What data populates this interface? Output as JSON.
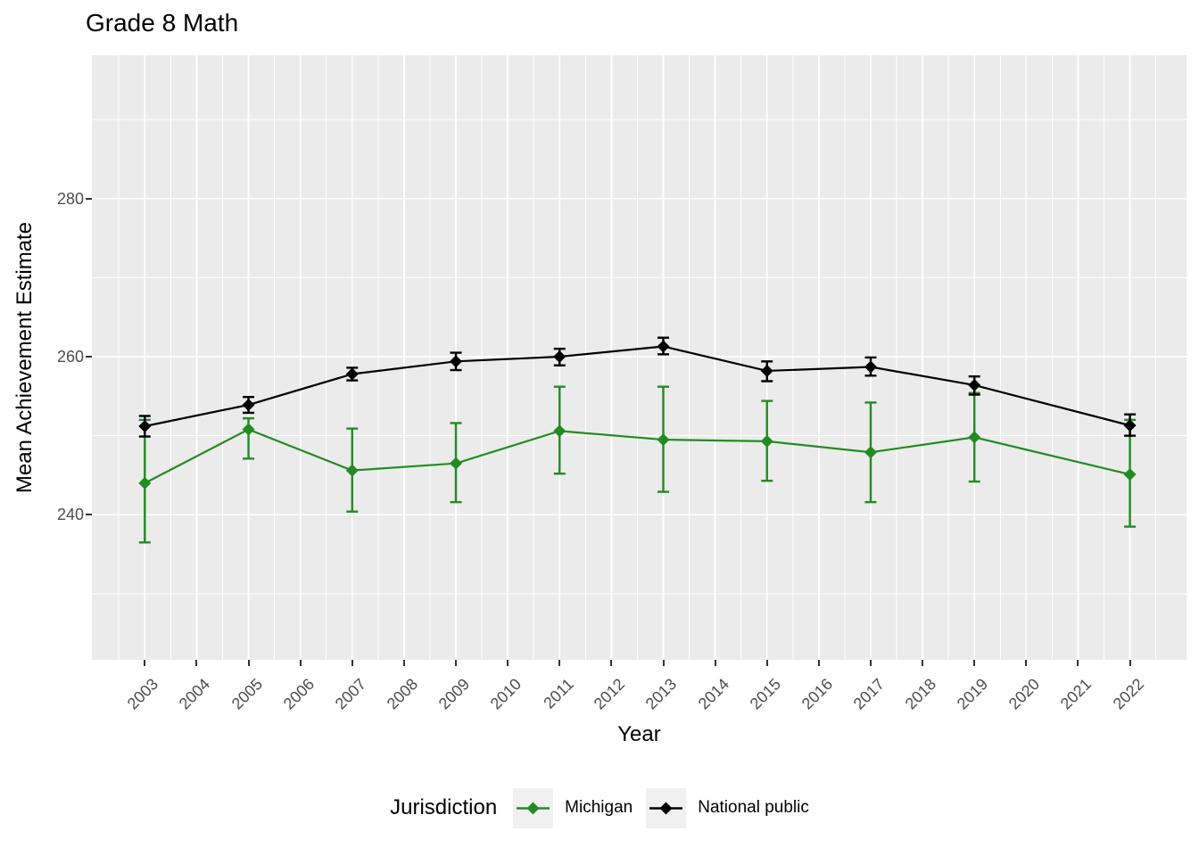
{
  "title": "Grade 8 Math",
  "axes": {
    "x": {
      "title": "Year",
      "ticks": [
        2003,
        2004,
        2005,
        2006,
        2007,
        2008,
        2009,
        2010,
        2011,
        2012,
        2013,
        2014,
        2015,
        2016,
        2017,
        2018,
        2019,
        2020,
        2021,
        2022
      ]
    },
    "y": {
      "title": "Mean Achievement Estimate",
      "ticks": [
        240,
        260,
        280
      ],
      "minor_ticks": [
        230,
        250,
        270,
        290
      ],
      "range": [
        221.8,
        298.2
      ]
    }
  },
  "legend": {
    "title": "Jurisdiction",
    "entries": [
      {
        "label": "Michigan",
        "color": "#228B22"
      },
      {
        "label": "National public",
        "color": "#000000"
      }
    ]
  },
  "chart_data": {
    "type": "line",
    "title": "Grade 8 Math",
    "xlabel": "Year",
    "ylabel": "Mean Achievement Estimate",
    "x": [
      2003,
      2005,
      2007,
      2009,
      2011,
      2013,
      2015,
      2017,
      2019,
      2022
    ],
    "ylim": [
      221.8,
      298.2
    ],
    "grid": "major-and-minor-white-on-grey",
    "point_shape": "filled-diamond",
    "error_bars": "95pct-confidence-interval",
    "series": [
      {
        "name": "Michigan",
        "color": "#228B22",
        "values": [
          244.0,
          250.8,
          245.6,
          246.5,
          250.6,
          249.5,
          249.3,
          247.9,
          249.8,
          245.1
        ],
        "ci_low": [
          236.5,
          247.1,
          240.4,
          241.6,
          245.2,
          242.9,
          244.3,
          241.6,
          244.2,
          238.5
        ],
        "ci_high": [
          252.0,
          252.2,
          250.9,
          251.6,
          256.2,
          256.2,
          254.4,
          254.2,
          255.4,
          252.0
        ]
      },
      {
        "name": "National public",
        "color": "#000000",
        "values": [
          251.2,
          253.9,
          257.8,
          259.4,
          260.0,
          261.3,
          258.2,
          258.7,
          256.4,
          251.3
        ],
        "ci_low": [
          249.9,
          252.9,
          257.0,
          258.3,
          258.9,
          260.3,
          256.9,
          257.6,
          255.2,
          250.0
        ],
        "ci_high": [
          252.5,
          254.9,
          258.6,
          260.5,
          261.0,
          262.4,
          259.4,
          259.9,
          257.5,
          252.7
        ]
      }
    ]
  }
}
